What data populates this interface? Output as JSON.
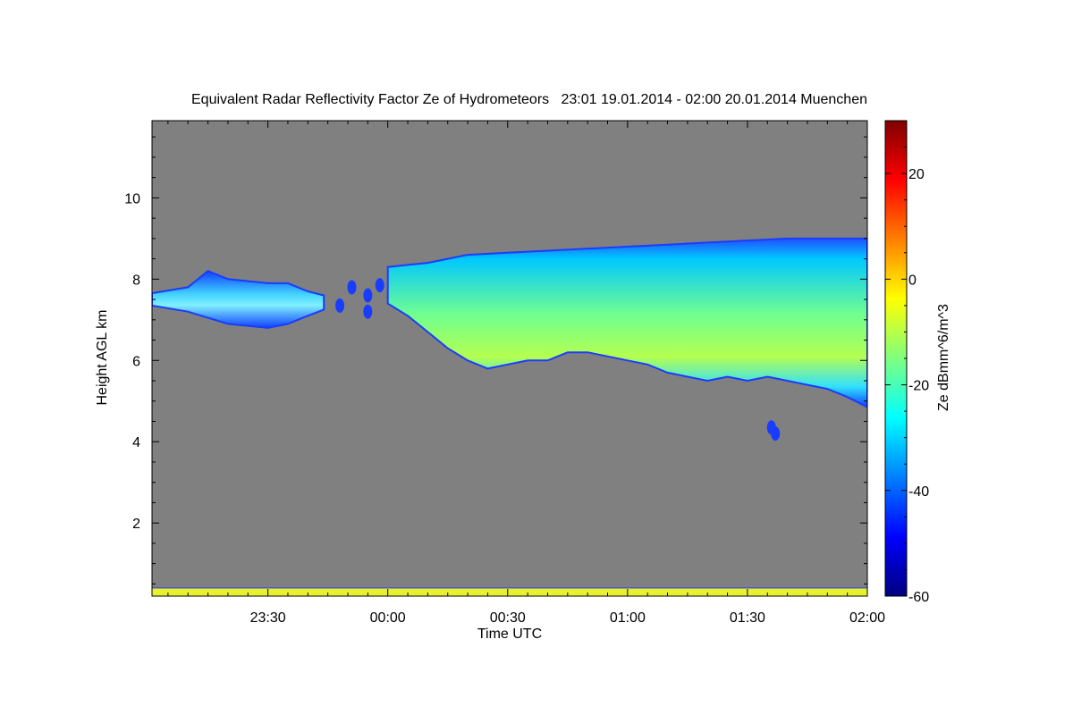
{
  "chart_data": {
    "type": "heatmap",
    "title": "Equivalent Radar Reflectivity Factor Ze of Hydrometeors   23:01 19.01.2014 - 02:00 20.01.2014 Muenchen",
    "xlabel": "Time UTC",
    "ylabel": "Height AGL km",
    "x_range_minutes_after_midnight": [
      -59,
      120
    ],
    "x_ticks": [
      {
        "label": "23:30",
        "value": -30
      },
      {
        "label": "00:00",
        "value": 0
      },
      {
        "label": "00:30",
        "value": 30
      },
      {
        "label": "01:00",
        "value": 60
      },
      {
        "label": "01:30",
        "value": 90
      },
      {
        "label": "02:00",
        "value": 120
      }
    ],
    "ylim": [
      0.2,
      11.9
    ],
    "y_ticks": [
      2,
      4,
      6,
      8,
      10
    ],
    "background_color": "#808080",
    "colorbar": {
      "label": "Ze dBmm^6/m^3",
      "range": [
        -60,
        30
      ],
      "ticks": [
        -60,
        -40,
        -20,
        0,
        20
      ],
      "colormap": "jet"
    },
    "grid": false,
    "echo_layers": [
      {
        "name": "main-cloud",
        "top": [
          [
            -59,
            7.65
          ],
          [
            -50,
            7.8
          ],
          [
            -45,
            8.2
          ],
          [
            -40,
            8.0
          ],
          [
            -30,
            7.9
          ],
          [
            -25,
            7.9
          ],
          [
            -20,
            7.7
          ],
          [
            -16,
            7.6
          ]
        ],
        "bottom": [
          [
            -59,
            7.35
          ],
          [
            -50,
            7.2
          ],
          [
            -40,
            6.9
          ],
          [
            -30,
            6.8
          ],
          [
            -25,
            6.9
          ],
          [
            -20,
            7.1
          ],
          [
            -16,
            7.25
          ]
        ],
        "core_ze": -30
      },
      {
        "name": "fragments",
        "blobs": [
          [
            -9,
            7.8
          ],
          [
            -5,
            7.6
          ],
          [
            -2,
            7.85
          ],
          [
            -12,
            7.35
          ],
          [
            -5,
            7.2
          ]
        ],
        "core_ze": -45
      },
      {
        "name": "descending-layer",
        "top": [
          [
            0,
            8.3
          ],
          [
            5,
            8.35
          ],
          [
            10,
            8.4
          ],
          [
            15,
            8.5
          ],
          [
            20,
            8.6
          ],
          [
            30,
            8.65
          ],
          [
            40,
            8.7
          ],
          [
            50,
            8.75
          ],
          [
            60,
            8.8
          ],
          [
            70,
            8.85
          ],
          [
            80,
            8.9
          ],
          [
            90,
            8.95
          ],
          [
            100,
            9.0
          ],
          [
            110,
            9.0
          ],
          [
            120,
            9.0
          ]
        ],
        "bottom": [
          [
            0,
            7.4
          ],
          [
            5,
            7.1
          ],
          [
            10,
            6.7
          ],
          [
            15,
            6.3
          ],
          [
            20,
            6.0
          ],
          [
            25,
            5.8
          ],
          [
            30,
            5.9
          ],
          [
            35,
            6.0
          ],
          [
            40,
            6.0
          ],
          [
            45,
            6.2
          ],
          [
            50,
            6.2
          ],
          [
            55,
            6.1
          ],
          [
            60,
            6.0
          ],
          [
            65,
            5.9
          ],
          [
            70,
            5.7
          ],
          [
            75,
            5.6
          ],
          [
            80,
            5.5
          ],
          [
            85,
            5.6
          ],
          [
            90,
            5.5
          ],
          [
            95,
            5.6
          ],
          [
            100,
            5.5
          ],
          [
            105,
            5.4
          ],
          [
            110,
            5.3
          ],
          [
            115,
            5.1
          ],
          [
            120,
            4.85
          ]
        ],
        "core_ze": -12
      },
      {
        "name": "isolated-echo",
        "blobs": [
          [
            97,
            4.2
          ],
          [
            96,
            4.35
          ]
        ],
        "core_ze": -48
      },
      {
        "name": "ground-clutter",
        "height_range": [
          0.2,
          0.4
        ],
        "core_ze": 0
      }
    ]
  }
}
